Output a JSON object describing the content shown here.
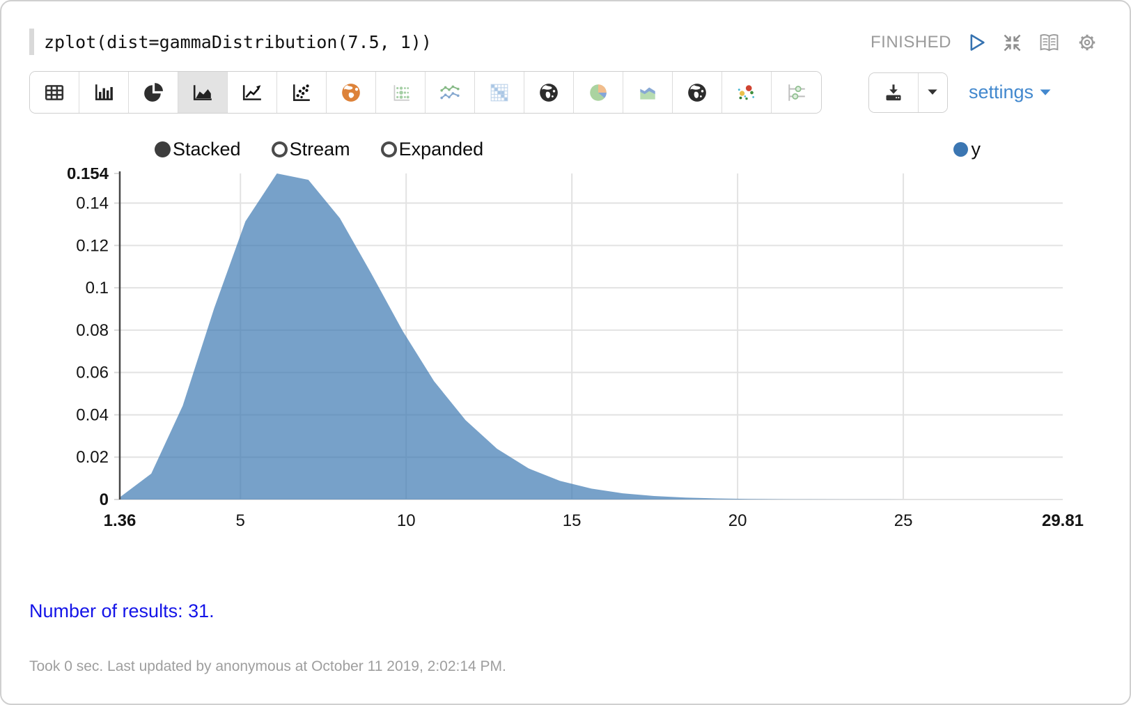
{
  "editor": {
    "code": "zplot(dist=gammaDistribution(7.5, 1))",
    "status": "FINISHED"
  },
  "actions": {
    "icons": [
      "run-icon",
      "collapse-icon",
      "book-icon",
      "gear-icon"
    ]
  },
  "toolbar": {
    "buttons": [
      {
        "name": "table",
        "selected": false
      },
      {
        "name": "bar-chart",
        "selected": false
      },
      {
        "name": "pie-chart",
        "selected": false
      },
      {
        "name": "area-chart",
        "selected": true
      },
      {
        "name": "line-chart",
        "selected": false
      },
      {
        "name": "scatter-plot",
        "selected": false
      },
      {
        "name": "map-globe-orange",
        "selected": false
      },
      {
        "name": "bubble-grid",
        "selected": false
      },
      {
        "name": "multi-line",
        "selected": false
      },
      {
        "name": "heatmap-matrix",
        "selected": false
      },
      {
        "name": "globe-map",
        "selected": false
      },
      {
        "name": "pie-color",
        "selected": false
      },
      {
        "name": "area-color",
        "selected": false
      },
      {
        "name": "globe-map-2",
        "selected": false
      },
      {
        "name": "scatter-color",
        "selected": false
      },
      {
        "name": "slider-settings",
        "selected": false
      }
    ]
  },
  "export": {
    "download_icon": "download-icon",
    "caret_icon": "caret-down-icon"
  },
  "settings": {
    "label": "settings",
    "caret_icon": "caret-down-icon",
    "color": "#4288ce"
  },
  "chart_controls": {
    "modes": [
      {
        "label": "Stacked",
        "selected": true
      },
      {
        "label": "Stream",
        "selected": false
      },
      {
        "label": "Expanded",
        "selected": false
      }
    ]
  },
  "legend": {
    "items": [
      {
        "label": "y",
        "color": "#3b76b2"
      }
    ]
  },
  "chart_data": {
    "type": "area",
    "title": "",
    "xlabel": "",
    "ylabel": "",
    "xlim": [
      1.36,
      29.81
    ],
    "ylim": [
      0,
      0.154
    ],
    "grid": true,
    "legend_position": "top-right",
    "series_name": "y",
    "area_fill": "rgba(54,116,176,0.68)",
    "x": [
      1.36,
      2.31,
      3.26,
      4.21,
      5.15,
      6.1,
      7.05,
      8.0,
      8.95,
      9.9,
      10.84,
      11.79,
      12.74,
      13.69,
      14.64,
      15.59,
      16.53,
      17.48,
      18.43,
      19.38,
      20.33,
      21.27,
      22.22,
      23.17,
      24.12,
      25.07,
      26.02,
      26.96,
      27.91,
      28.86,
      29.81
    ],
    "y": [
      0.00101,
      0.01222,
      0.0443,
      0.0904,
      0.1314,
      0.154,
      0.151,
      0.1329,
      0.1067,
      0.0795,
      0.0559,
      0.0375,
      0.024,
      0.0147,
      0.0088,
      0.00513,
      0.00293,
      0.00164,
      0.0009,
      0.00049,
      0.00026,
      0.00014,
      7e-05,
      4e-05,
      2e-05,
      1e-05,
      5e-06,
      2.5e-06,
      1.3e-06,
      6e-07,
      3e-07
    ],
    "x_ticks": [
      {
        "v": 1.36,
        "label": "1.36",
        "bold": true
      },
      {
        "v": 5,
        "label": "5",
        "grid": true
      },
      {
        "v": 10,
        "label": "10",
        "grid": true
      },
      {
        "v": 15,
        "label": "15",
        "grid": true
      },
      {
        "v": 20,
        "label": "20",
        "grid": true
      },
      {
        "v": 25,
        "label": "25",
        "grid": true
      },
      {
        "v": 29.81,
        "label": "29.81",
        "bold": true
      }
    ],
    "y_ticks": [
      {
        "v": 0,
        "label": "0",
        "bold": true
      },
      {
        "v": 0.02,
        "label": "0.02",
        "grid": true
      },
      {
        "v": 0.04,
        "label": "0.04",
        "grid": true
      },
      {
        "v": 0.06,
        "label": "0.06",
        "grid": true
      },
      {
        "v": 0.08,
        "label": "0.08",
        "grid": true
      },
      {
        "v": 0.1,
        "label": "0.1",
        "grid": true
      },
      {
        "v": 0.12,
        "label": "0.12",
        "grid": true
      },
      {
        "v": 0.14,
        "label": "0.14",
        "grid": true
      },
      {
        "v": 0.154,
        "label": "0.154",
        "bold": true
      }
    ]
  },
  "results": {
    "text": "Number of results: 31.",
    "color": "#1414e8"
  },
  "footer": {
    "text": "Took 0 sec. Last updated by anonymous at October 11 2019, 2:02:14 PM."
  }
}
